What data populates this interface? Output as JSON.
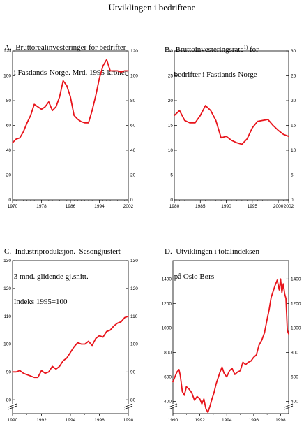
{
  "page": {
    "title": "Utviklingen i bedriftene"
  },
  "colors": {
    "line": "#e8141b",
    "axis": "#000000"
  },
  "chart_data": [
    {
      "id": "A",
      "type": "line",
      "title_lines": [
        "A.  Bruttorealinvesteringer for bedrifter",
        "     i Fastlands-Norge. Mrd. 1995-kroner"
      ],
      "xlim": [
        1970,
        2002
      ],
      "ylim": [
        0,
        120
      ],
      "xticks": [
        1970,
        1978,
        1986,
        1994,
        2002
      ],
      "xtick_labels": [
        "1970",
        "1978",
        "1986",
        "1994",
        "2002"
      ],
      "yticks": [
        0,
        20,
        40,
        60,
        80,
        100,
        120
      ],
      "ytick_labels": [
        "0",
        "20",
        "40",
        "60",
        "80",
        "100",
        "120"
      ],
      "x": [
        1970,
        1971,
        1972,
        1973,
        1974,
        1975,
        1976,
        1977,
        1978,
        1979,
        1980,
        1981,
        1982,
        1983,
        1984,
        1985,
        1986,
        1987,
        1988,
        1989,
        1990,
        1991,
        1992,
        1993,
        1994,
        1995,
        1996,
        1997,
        1998,
        1999,
        2000,
        2001,
        2002
      ],
      "values": [
        46,
        49,
        50,
        55,
        62,
        68,
        77,
        75,
        73,
        75,
        79,
        72,
        75,
        83,
        96,
        92,
        83,
        68,
        65,
        63,
        62,
        62,
        72,
        84,
        98,
        108,
        113,
        104,
        104,
        104,
        103,
        104,
        104
      ]
    },
    {
      "id": "B",
      "type": "line",
      "title_lines": [
        "B.  Bruttoinvesteringsrate",
        "     bedrifter i Fastlands-Norge"
      ],
      "title_suffix_line1": " for",
      "superscript": "1)",
      "xlim": [
        1980,
        2002
      ],
      "ylim": [
        0,
        30
      ],
      "xticks": [
        1980,
        1985,
        1990,
        1995,
        2000,
        2002
      ],
      "xtick_labels": [
        "1980",
        "1985",
        "1990",
        "1995",
        "2000",
        "2002"
      ],
      "yticks": [
        0,
        5,
        10,
        15,
        20,
        25,
        30
      ],
      "ytick_labels": [
        "0",
        "5",
        "10",
        "15",
        "20",
        "25",
        "30"
      ],
      "x": [
        1980,
        1981,
        1982,
        1983,
        1984,
        1985,
        1986,
        1987,
        1988,
        1989,
        1990,
        1991,
        1992,
        1993,
        1994,
        1995,
        1996,
        1997,
        1998,
        1999,
        2000,
        2001,
        2002
      ],
      "values": [
        17,
        18,
        16,
        15.5,
        15.5,
        17,
        19,
        18,
        16,
        12.5,
        12.8,
        12,
        11.5,
        11.2,
        12.3,
        14.5,
        15.8,
        16,
        16.2,
        15,
        14,
        13.2,
        12.8
      ]
    },
    {
      "id": "C",
      "type": "line",
      "title_lines": [
        "C.  Industriproduksjon.  Sesongjustert",
        "     3 mnd. glidende gj.snitt.",
        "     Indeks 1995=100"
      ],
      "xlim": [
        1990,
        1998
      ],
      "ylim": [
        75,
        130
      ],
      "axis_break": true,
      "xticks": [
        1990,
        1992,
        1994,
        1996,
        1998
      ],
      "xtick_labels": [
        "1990",
        "1992",
        "1994",
        "1996",
        "1998"
      ],
      "yticks": [
        80,
        90,
        100,
        110,
        120,
        130
      ],
      "ytick_labels": [
        "80",
        "90",
        "100",
        "110",
        "120",
        "130"
      ],
      "x": [
        1990.0,
        1990.25,
        1990.5,
        1990.75,
        1991.0,
        1991.25,
        1991.5,
        1991.75,
        1992.0,
        1992.25,
        1992.5,
        1992.75,
        1993.0,
        1993.25,
        1993.5,
        1993.75,
        1994.0,
        1994.25,
        1994.5,
        1994.75,
        1995.0,
        1995.25,
        1995.5,
        1995.75,
        1996.0,
        1996.25,
        1996.5,
        1996.75,
        1997.0,
        1997.25,
        1997.5,
        1997.75,
        1998.0
      ],
      "values": [
        90,
        90,
        90.5,
        89.5,
        89,
        88.5,
        88,
        88,
        90.5,
        89.5,
        90,
        92,
        91,
        92,
        94,
        95,
        97,
        99,
        100.5,
        100,
        100,
        101,
        99.5,
        102,
        103,
        102.5,
        104.5,
        105,
        106.5,
        107.5,
        108,
        109.5,
        110
      ]
    },
    {
      "id": "D",
      "type": "line",
      "title_lines": [
        "D.  Utviklingen i totalindeksen",
        "     på Oslo Børs"
      ],
      "xlim": [
        1990,
        1998.6
      ],
      "ylim": [
        300,
        1550
      ],
      "axis_break": true,
      "xticks": [
        1990,
        1992,
        1994,
        1996,
        1998
      ],
      "xtick_labels": [
        "1990",
        "1992",
        "1994",
        "1996",
        "1998"
      ],
      "yticks": [
        400,
        600,
        800,
        1000,
        1200,
        1400
      ],
      "ytick_labels": [
        "400",
        "600",
        "800",
        "1000",
        "1200",
        "1400"
      ],
      "x": [
        1990.0,
        1990.15,
        1990.3,
        1990.45,
        1990.55,
        1990.7,
        1990.85,
        1991.0,
        1991.2,
        1991.4,
        1991.6,
        1991.8,
        1992.0,
        1992.15,
        1992.3,
        1992.45,
        1992.6,
        1992.75,
        1992.9,
        1993.05,
        1993.2,
        1993.35,
        1993.5,
        1993.65,
        1993.8,
        1994.0,
        1994.2,
        1994.4,
        1994.6,
        1994.8,
        1995.0,
        1995.2,
        1995.4,
        1995.6,
        1995.8,
        1996.0,
        1996.2,
        1996.4,
        1996.6,
        1996.8,
        1997.0,
        1997.15,
        1997.3,
        1997.45,
        1997.6,
        1997.75,
        1997.9,
        1998.0,
        1998.1,
        1998.2,
        1998.3,
        1998.4,
        1998.5,
        1998.6
      ],
      "values": [
        560,
        600,
        640,
        660,
        610,
        480,
        450,
        520,
        500,
        470,
        410,
        440,
        420,
        380,
        420,
        340,
        310,
        360,
        420,
        470,
        540,
        590,
        640,
        680,
        630,
        600,
        650,
        670,
        620,
        640,
        650,
        720,
        700,
        720,
        730,
        760,
        780,
        860,
        900,
        960,
        1070,
        1150,
        1250,
        1300,
        1350,
        1390,
        1310,
        1400,
        1290,
        1360,
        1280,
        1240,
        980,
        950
      ]
    }
  ]
}
